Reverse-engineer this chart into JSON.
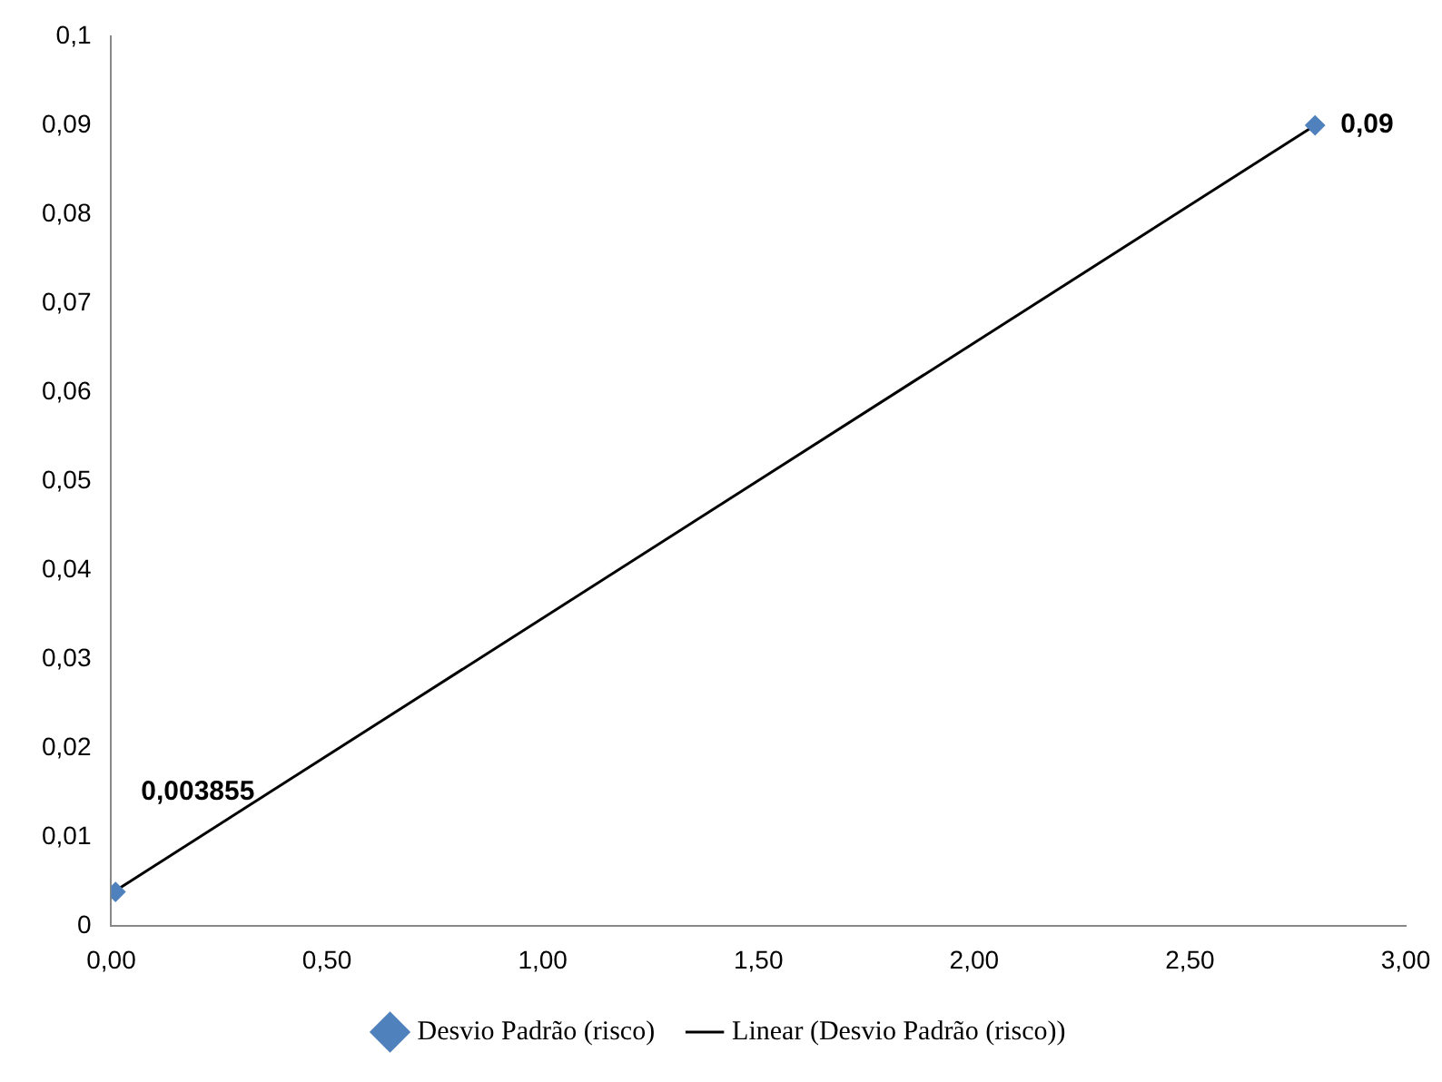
{
  "chart_data": {
    "type": "scatter",
    "legend": "bottom",
    "grid": false,
    "series": [
      {
        "name": "Desvio Padrão (risco)",
        "color": "#4f81bd",
        "marker": "diamond",
        "values": [
          0.003855,
          0.09
        ],
        "value_labels": [
          "0,003855",
          "0,09"
        ]
      },
      {
        "name": "Linear (Desvio Padrão (risco))",
        "type": "line",
        "color": "#000000",
        "marker": "none",
        "values": [
          0.004,
          0.09
        ]
      }
    ],
    "x": [
      0.01,
      2.79
    ],
    "xlim": [
      0,
      3
    ],
    "xticks": [
      {
        "value": 0,
        "label": "0,00"
      },
      {
        "value": 0.5,
        "label": "0,50"
      },
      {
        "value": 1,
        "label": "1,00"
      },
      {
        "value": 1.5,
        "label": "1,50"
      },
      {
        "value": 2,
        "label": "2,00"
      },
      {
        "value": 2.5,
        "label": "2,50"
      },
      {
        "value": 3,
        "label": "3,00"
      }
    ],
    "ylim": [
      0,
      0.1
    ],
    "yticks": [
      0,
      {
        "value": 0.01,
        "label": "0,01"
      },
      {
        "value": 0.02,
        "label": "0,02"
      },
      {
        "value": 0.03,
        "label": "0,03"
      },
      {
        "value": 0.04,
        "label": "0,04"
      },
      {
        "value": 0.05,
        "label": "0,05"
      },
      {
        "value": 0.06,
        "label": "0,06"
      },
      {
        "value": 0.07,
        "label": "0,07"
      },
      {
        "value": 0.08,
        "label": "0,08"
      },
      {
        "value": 0.09,
        "label": "0,09"
      },
      {
        "value": 0.1,
        "label": "0,1"
      }
    ]
  }
}
